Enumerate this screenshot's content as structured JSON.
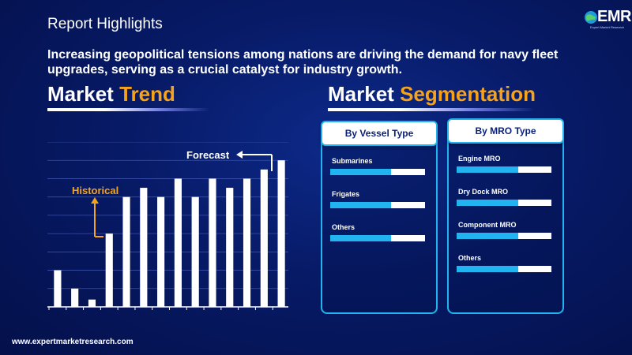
{
  "header": {
    "title": "Report Highlights",
    "logo_text": "EMR",
    "logo_tagline": "Expert Market Research"
  },
  "headline": "Increasing geopolitical tensions among nations are driving the demand for navy fleet upgrades, serving as a crucial catalyst for industry growth.",
  "market_trend": {
    "title_main": "Market",
    "title_accent": "Trend",
    "forecast_label": "Forecast",
    "historical_label": "Historical",
    "chart_data": {
      "type": "bar",
      "values": [
        20,
        10,
        4,
        40,
        60,
        65,
        60,
        70,
        60,
        70,
        65,
        70,
        75,
        80
      ],
      "ylim": [
        0,
        90
      ],
      "grid": true
    }
  },
  "market_segmentation": {
    "title_main": "Market",
    "title_accent": "Segmentation",
    "cards": [
      {
        "heading": "By Vessel Type",
        "items": [
          {
            "label": "Submarines",
            "fill": 0.64
          },
          {
            "label": "Frigates",
            "fill": 0.64
          },
          {
            "label": "Others",
            "fill": 0.64
          }
        ]
      },
      {
        "heading": "By MRO Type",
        "items": [
          {
            "label": "Engine MRO",
            "fill": 0.65
          },
          {
            "label": "Dry Dock MRO",
            "fill": 0.65
          },
          {
            "label": "Component MRO",
            "fill": 0.65
          },
          {
            "label": "Others",
            "fill": 0.65
          }
        ]
      }
    ]
  },
  "colors": {
    "accent": "#f5a31a",
    "bar_accent": "#21b4f0",
    "background": "#071a66"
  },
  "footer": {
    "website": "www.expertmarketresearch.com"
  }
}
